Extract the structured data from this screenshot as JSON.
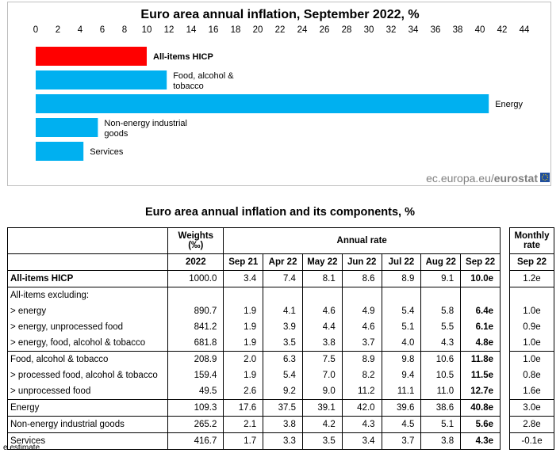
{
  "chart_data": {
    "type": "bar",
    "orientation": "horizontal",
    "title": "Euro area annual inflation, September 2022, %",
    "categories": [
      "All-items HICP",
      "Food, alcohol & tobacco",
      "Energy",
      "Non-energy industrial goods",
      "Services"
    ],
    "category_lines": [
      [
        "All-items HICP"
      ],
      [
        "Food, alcohol &",
        "tobacco"
      ],
      [
        "Energy"
      ],
      [
        "Non-energy industrial",
        "goods"
      ],
      [
        "Services"
      ]
    ],
    "values": [
      10.0,
      11.8,
      40.8,
      5.6,
      4.3
    ],
    "colors": [
      "#ff0000",
      "#00b0f0",
      "#00b0f0",
      "#00b0f0",
      "#00b0f0"
    ],
    "bold_category": "All-items HICP",
    "xlim": [
      0,
      44
    ],
    "xticks": [
      0,
      2,
      4,
      6,
      8,
      10,
      12,
      14,
      16,
      18,
      20,
      22,
      24,
      26,
      28,
      30,
      32,
      34,
      36,
      38,
      40,
      42,
      44
    ],
    "xtick_position": "top",
    "grid": false,
    "source_plain": "ec.europa.eu/",
    "source_bold": "eurostat"
  },
  "table": {
    "title": "Euro area annual inflation and its components, %",
    "weights_header": "Weights",
    "weights_unit": "(‰)",
    "annual_rate_header": "Annual rate",
    "monthly_header_line1": "Monthly",
    "monthly_header_line2": "rate",
    "weights_year": "2022",
    "columns": [
      "Sep 21",
      "Apr 22",
      "May 22",
      "Jun 22",
      "Jul 22",
      "Aug 22",
      "Sep 22"
    ],
    "monthly_column": "Sep 22",
    "rows": [
      {
        "label": "All-items HICP",
        "weight": "1000.0",
        "values": [
          "3.4",
          "7.4",
          "8.1",
          "8.6",
          "8.9",
          "9.1",
          "10.0e"
        ],
        "monthly": "1.2e",
        "bold": true
      },
      {
        "label": "All-items excluding:",
        "weight": "",
        "values": [
          "",
          "",
          "",
          "",
          "",
          "",
          ""
        ],
        "monthly": "",
        "bold": false
      },
      {
        "label": "> energy",
        "weight": "890.7",
        "values": [
          "1.9",
          "4.1",
          "4.6",
          "4.9",
          "5.4",
          "5.8",
          "6.4e"
        ],
        "monthly": "1.0e",
        "bold": false
      },
      {
        "label": "> energy, unprocessed food",
        "weight": "841.2",
        "values": [
          "1.9",
          "3.9",
          "4.4",
          "4.6",
          "5.1",
          "5.5",
          "6.1e"
        ],
        "monthly": "0.9e",
        "bold": false
      },
      {
        "label": "> energy, food, alcohol & tobacco",
        "weight": "681.8",
        "values": [
          "1.9",
          "3.5",
          "3.8",
          "3.7",
          "4.0",
          "4.3",
          "4.8e"
        ],
        "monthly": "1.0e",
        "bold": false
      },
      {
        "label": "Food, alcohol & tobacco",
        "weight": "208.9",
        "values": [
          "2.0",
          "6.3",
          "7.5",
          "8.9",
          "9.8",
          "10.6",
          "11.8e"
        ],
        "monthly": "1.0e",
        "bold": false
      },
      {
        "label": "> processed food, alcohol & tobacco",
        "weight": "159.4",
        "values": [
          "1.9",
          "5.4",
          "7.0",
          "8.2",
          "9.4",
          "10.5",
          "11.5e"
        ],
        "monthly": "0.8e",
        "bold": false
      },
      {
        "label": "> unprocessed food",
        "weight": "49.5",
        "values": [
          "2.6",
          "9.2",
          "9.0",
          "11.2",
          "11.1",
          "11.0",
          "12.7e"
        ],
        "monthly": "1.6e",
        "bold": false
      },
      {
        "label": "Energy",
        "weight": "109.3",
        "values": [
          "17.6",
          "37.5",
          "39.1",
          "42.0",
          "39.6",
          "38.6",
          "40.8e"
        ],
        "monthly": "3.0e",
        "bold": false
      },
      {
        "label": "Non-energy industrial goods",
        "weight": "265.2",
        "values": [
          "2.1",
          "3.8",
          "4.2",
          "4.3",
          "4.5",
          "5.1",
          "5.6e"
        ],
        "monthly": "2.8e",
        "bold": false
      },
      {
        "label": "Services",
        "weight": "416.7",
        "values": [
          "1.7",
          "3.3",
          "3.5",
          "3.4",
          "3.7",
          "3.8",
          "4.3e"
        ],
        "monthly": "-0.1e",
        "bold": false
      }
    ],
    "footnote": "e estimate"
  }
}
